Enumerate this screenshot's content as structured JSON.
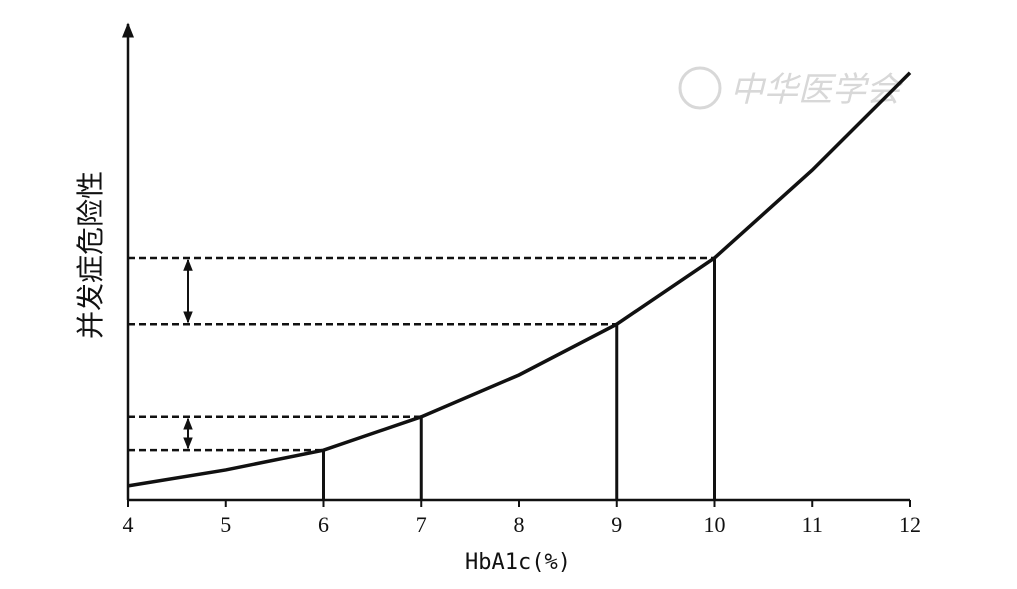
{
  "chart_data": {
    "type": "line",
    "x_label": "HbA1c(%)",
    "y_label": "并发症危险性",
    "watermark": "中华医学会",
    "x": [
      4,
      5,
      6,
      7,
      8,
      9,
      10,
      11,
      12
    ],
    "values": [
      3.0,
      6.4,
      10.6,
      17.7,
      26.6,
      37.4,
      51.5,
      70.2,
      90.9
    ],
    "color": "#111111",
    "xlim": [
      4,
      12
    ],
    "xticks": [
      4,
      5,
      6,
      7,
      8,
      9,
      10,
      11,
      12
    ],
    "ylim": [
      0,
      100
    ],
    "highlight_x": [
      6,
      7,
      9,
      10
    ]
  }
}
